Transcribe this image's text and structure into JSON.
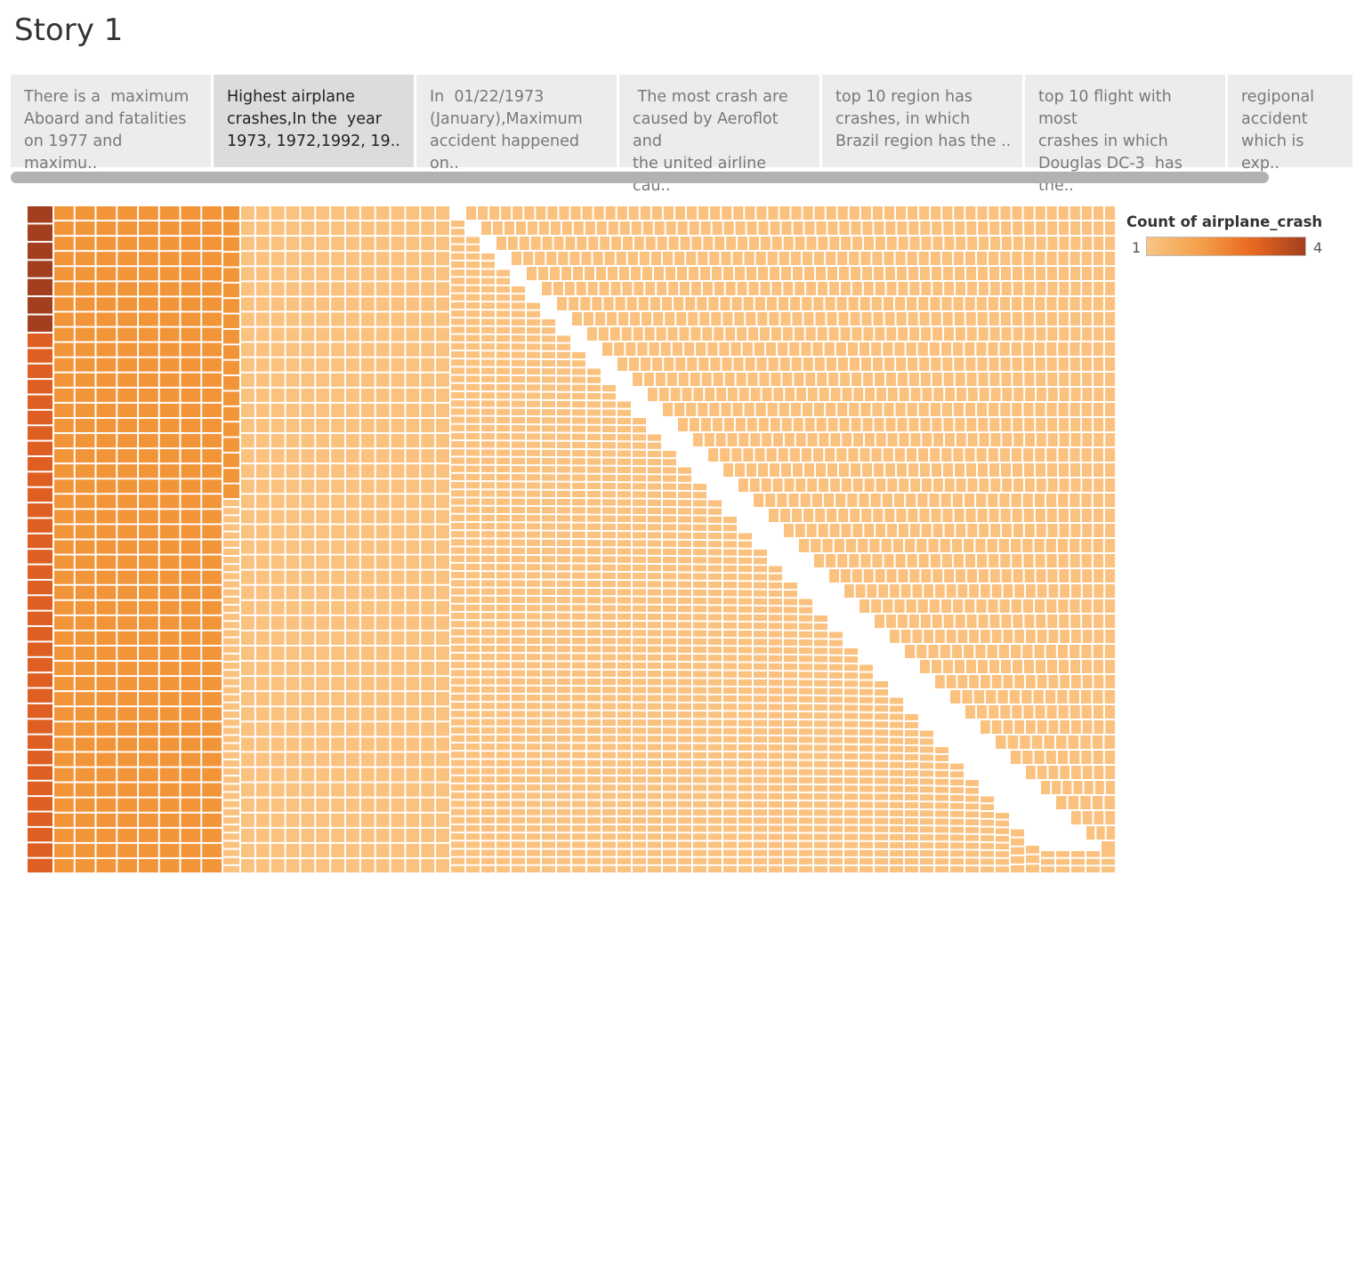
{
  "story": {
    "title": "Story 1",
    "points": [
      {
        "caption": "There is a  maximum\nAboard and fatalities\non 1977 and maximu..",
        "active": false
      },
      {
        "caption": "Highest airplane\ncrashes,In the  year\n1973, 1972,1992, 19..",
        "active": true
      },
      {
        "caption": "In  01/22/1973\n(January),Maximum\naccident happened on..",
        "active": false
      },
      {
        "caption": " The most crash are\ncaused by Aeroflot and\nthe united airline cau..",
        "active": false
      },
      {
        "caption": "top 10 region has\ncrashes, in which\nBrazil region has the ..",
        "active": false
      },
      {
        "caption": "top 10 flight with most\ncrashes in which\nDouglas DC-3  has the..",
        "active": false
      },
      {
        "caption": "regiponal\naccident\nwhich is exp..",
        "active": false
      }
    ]
  },
  "legend": {
    "title": "Count of airplane_crash",
    "min_label": "1",
    "max_label": "4"
  },
  "colors": {
    "scale": [
      "#fbc17e",
      "#f29438",
      "#df5f22",
      "#a33f1f"
    ],
    "gradient_stops": [
      "#f9c584",
      "#f3a04a",
      "#e8681f",
      "#a33f1f"
    ]
  },
  "chart_data": {
    "type": "treemap",
    "measure": "Count of airplane_crash",
    "color_range": [
      1,
      4
    ],
    "groups": [
      {
        "value": 4,
        "tiles": 7
      },
      {
        "value": 3,
        "tiles": 35
      },
      {
        "value": 2,
        "tiles": 322
      },
      {
        "value": 1,
        "tiles": 3700
      }
    ]
  }
}
